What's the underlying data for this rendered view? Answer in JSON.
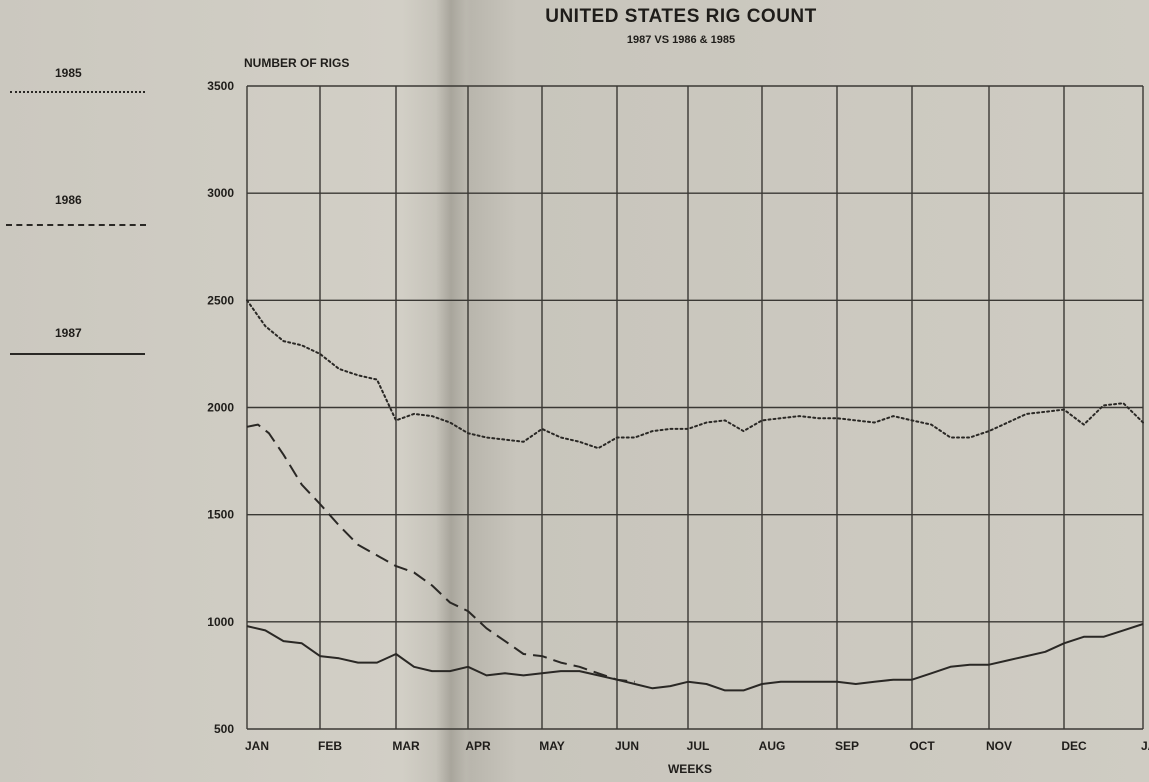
{
  "chart_data": {
    "type": "line",
    "title": "UNITED STATES RIG COUNT",
    "subtitle": "1987 VS 1986 & 1985",
    "ylabel": "NUMBER OF RIGS",
    "xlabel": "WEEKS",
    "ylim": [
      500,
      3500
    ],
    "yticks": [
      500,
      1000,
      1500,
      2000,
      2500,
      3000,
      3500
    ],
    "ytick_labels": [
      "500",
      "1000",
      "1500",
      "2000",
      "2500",
      "3000",
      "3500"
    ],
    "months": [
      "JAN",
      "FEB",
      "MAR",
      "APR",
      "MAY",
      "JUN",
      "JUL",
      "AUG",
      "SEP",
      "OCT",
      "NOV",
      "DEC",
      "JAN"
    ],
    "grid": true,
    "legend_position": "left",
    "series": [
      {
        "name": "1985",
        "style": "dotted",
        "color": "#2a2825",
        "x": [
          0,
          0.25,
          0.5,
          0.75,
          1,
          1.25,
          1.5,
          1.75,
          2,
          2.25,
          2.5,
          2.75,
          3,
          3.25,
          3.5,
          3.75,
          4,
          4.25,
          4.5,
          4.75,
          5,
          5.25,
          5.5,
          5.75,
          6,
          6.25,
          6.5,
          6.75,
          7,
          7.25,
          7.5,
          7.75,
          8,
          8.25,
          8.5,
          8.75,
          9,
          9.25,
          9.5,
          9.75,
          10,
          10.25,
          10.5,
          10.75,
          11,
          11.25,
          11.5,
          11.75,
          12
        ],
        "y": [
          2500,
          2380,
          2310,
          2290,
          2250,
          2180,
          2150,
          2130,
          1940,
          1970,
          1960,
          1930,
          1880,
          1860,
          1850,
          1840,
          1900,
          1860,
          1840,
          1810,
          1860,
          1860,
          1890,
          1900,
          1900,
          1930,
          1940,
          1890,
          1940,
          1950,
          1960,
          1950,
          1950,
          1940,
          1930,
          1960,
          1940,
          1920,
          1860,
          1860,
          1890,
          1930,
          1970,
          1980,
          1990,
          1920,
          2010,
          2020,
          1930
        ]
      },
      {
        "name": "1986",
        "style": "dashed",
        "color": "#2a2825",
        "x": [
          0,
          0.15,
          0.3,
          0.5,
          0.75,
          1,
          1.25,
          1.5,
          1.75,
          2,
          2.25,
          2.5,
          2.75,
          3,
          3.25,
          3.5,
          3.75,
          4,
          4.25,
          4.5,
          4.75,
          5,
          5.25
        ],
        "y": [
          1910,
          1920,
          1880,
          1780,
          1640,
          1550,
          1450,
          1360,
          1310,
          1260,
          1230,
          1170,
          1090,
          1050,
          970,
          910,
          850,
          840,
          810,
          790,
          760,
          730,
          720
        ]
      },
      {
        "name": "1987",
        "style": "solid",
        "color": "#2a2825",
        "x": [
          0,
          0.25,
          0.5,
          0.75,
          1,
          1.25,
          1.5,
          1.75,
          2,
          2.25,
          2.5,
          2.75,
          3,
          3.25,
          3.5,
          3.75,
          4,
          4.25,
          4.5,
          4.75,
          5,
          5.25,
          5.5,
          5.75,
          6,
          6.25,
          6.5,
          6.75,
          7,
          7.25,
          7.5,
          7.75,
          8,
          8.25,
          8.5,
          8.75,
          9,
          9.25,
          9.5,
          9.75,
          10,
          10.25,
          10.5,
          10.75,
          11,
          11.25,
          11.5,
          11.75,
          12
        ],
        "y": [
          980,
          960,
          910,
          900,
          840,
          830,
          810,
          810,
          850,
          790,
          770,
          770,
          790,
          750,
          760,
          750,
          760,
          770,
          770,
          750,
          730,
          710,
          690,
          700,
          720,
          710,
          680,
          680,
          710,
          720,
          720,
          720,
          720,
          710,
          720,
          730,
          730,
          760,
          790,
          800,
          800,
          820,
          840,
          860,
          900,
          930,
          930,
          960,
          990
        ]
      }
    ]
  }
}
